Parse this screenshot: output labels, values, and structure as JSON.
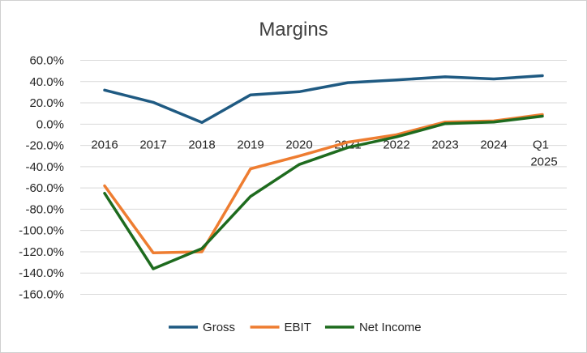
{
  "chart_data": {
    "type": "line",
    "title": "Margins",
    "xlabel": "",
    "ylabel": "",
    "categories": [
      "2016",
      "2017",
      "2018",
      "2019",
      "2020",
      "2021",
      "2022",
      "2023",
      "2024",
      "Q1 2025"
    ],
    "y_tick_labels": [
      "60.0%",
      "40.0%",
      "20.0%",
      "0.0%",
      "-20.0%",
      "-40.0%",
      "-60.0%",
      "-80.0%",
      "-100.0%",
      "-120.0%",
      "-140.0%",
      "-160.0%"
    ],
    "y_ticks": [
      60,
      40,
      20,
      0,
      -20,
      -40,
      -60,
      -80,
      -100,
      -120,
      -140,
      -160
    ],
    "ylim": [
      -160,
      60
    ],
    "grid": true,
    "legend": "bottom",
    "series": [
      {
        "name": "Gross",
        "color": "#1f5a82",
        "values": [
          32,
          20.5,
          1.5,
          27.5,
          30.5,
          39,
          41.5,
          44.5,
          42.5,
          45.5
        ]
      },
      {
        "name": "EBIT",
        "color": "#ee7d31",
        "values": [
          -58,
          -121,
          -120,
          -42,
          -30,
          -17,
          -10,
          2,
          3,
          9
        ]
      },
      {
        "name": "Net Income",
        "color": "#1e6b1e",
        "values": [
          -65,
          -136,
          -117,
          -68,
          -38,
          -22,
          -12,
          0.5,
          2,
          7.5
        ]
      }
    ]
  }
}
